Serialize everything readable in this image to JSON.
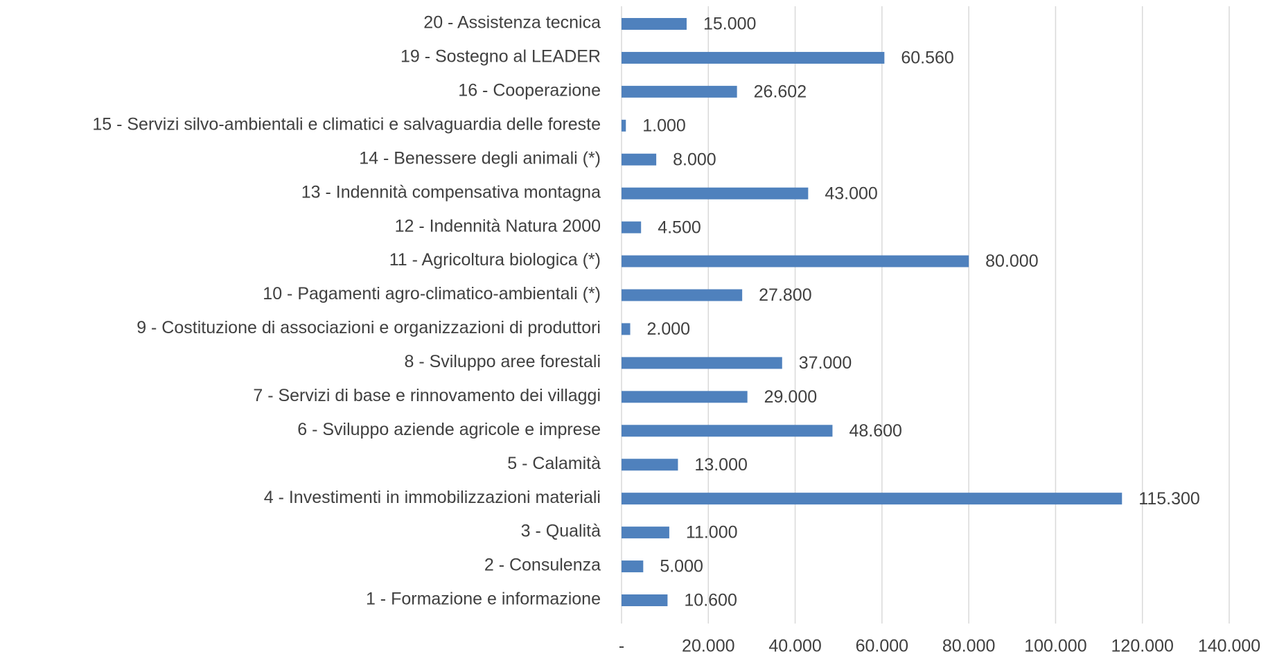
{
  "chart_data": {
    "type": "bar",
    "orientation": "horizontal",
    "categories": [
      "20 - Assistenza tecnica",
      "19 - Sostegno al LEADER",
      "16 - Cooperazione",
      "15 - Servizi silvo-ambientali e climatici e salvaguardia delle foreste",
      "14 - Benessere degli animali (*)",
      "13 - Indennità compensativa montagna",
      "12 - Indennità Natura 2000 ",
      "11 - Agricoltura biologica (*)",
      "10 - Pagamenti agro-climatico-ambientali (*)",
      "9 - Costituzione di associazioni e organizzazioni di produttori",
      "8 - Sviluppo aree forestali",
      "7 - Servizi di base e rinnovamento dei villaggi",
      "6 - Sviluppo aziende agricole e imprese",
      "5 - Calamità",
      "4 - Investimenti in immobilizzazioni materiali",
      "3 - Qualità",
      "2 - Consulenza",
      "1 - Formazione e informazione"
    ],
    "values": [
      15000,
      60560,
      26602,
      1000,
      8000,
      43000,
      4500,
      80000,
      27800,
      2000,
      37000,
      29000,
      48600,
      13000,
      115300,
      11000,
      5000,
      10600
    ],
    "value_labels": [
      "15.000",
      "60.560",
      "26.602",
      "1.000",
      "8.000",
      "43.000",
      "4.500",
      "80.000",
      "27.800",
      "2.000",
      "37.000",
      "29.000",
      "48.600",
      "13.000",
      "115.300",
      "11.000",
      "5.000",
      "10.600"
    ],
    "color": "#4f81bd",
    "xlim": [
      0,
      140000
    ],
    "xticks": [
      {
        "value": 0,
        "label": "-"
      },
      {
        "value": 20000,
        "label": "20.000"
      },
      {
        "value": 40000,
        "label": "40.000"
      },
      {
        "value": 60000,
        "label": "60.000"
      },
      {
        "value": 80000,
        "label": "80.000"
      },
      {
        "value": 100000,
        "label": "100.000"
      },
      {
        "value": 120000,
        "label": "120.000"
      },
      {
        "value": 140000,
        "label": "140.000"
      }
    ],
    "grid": true
  }
}
